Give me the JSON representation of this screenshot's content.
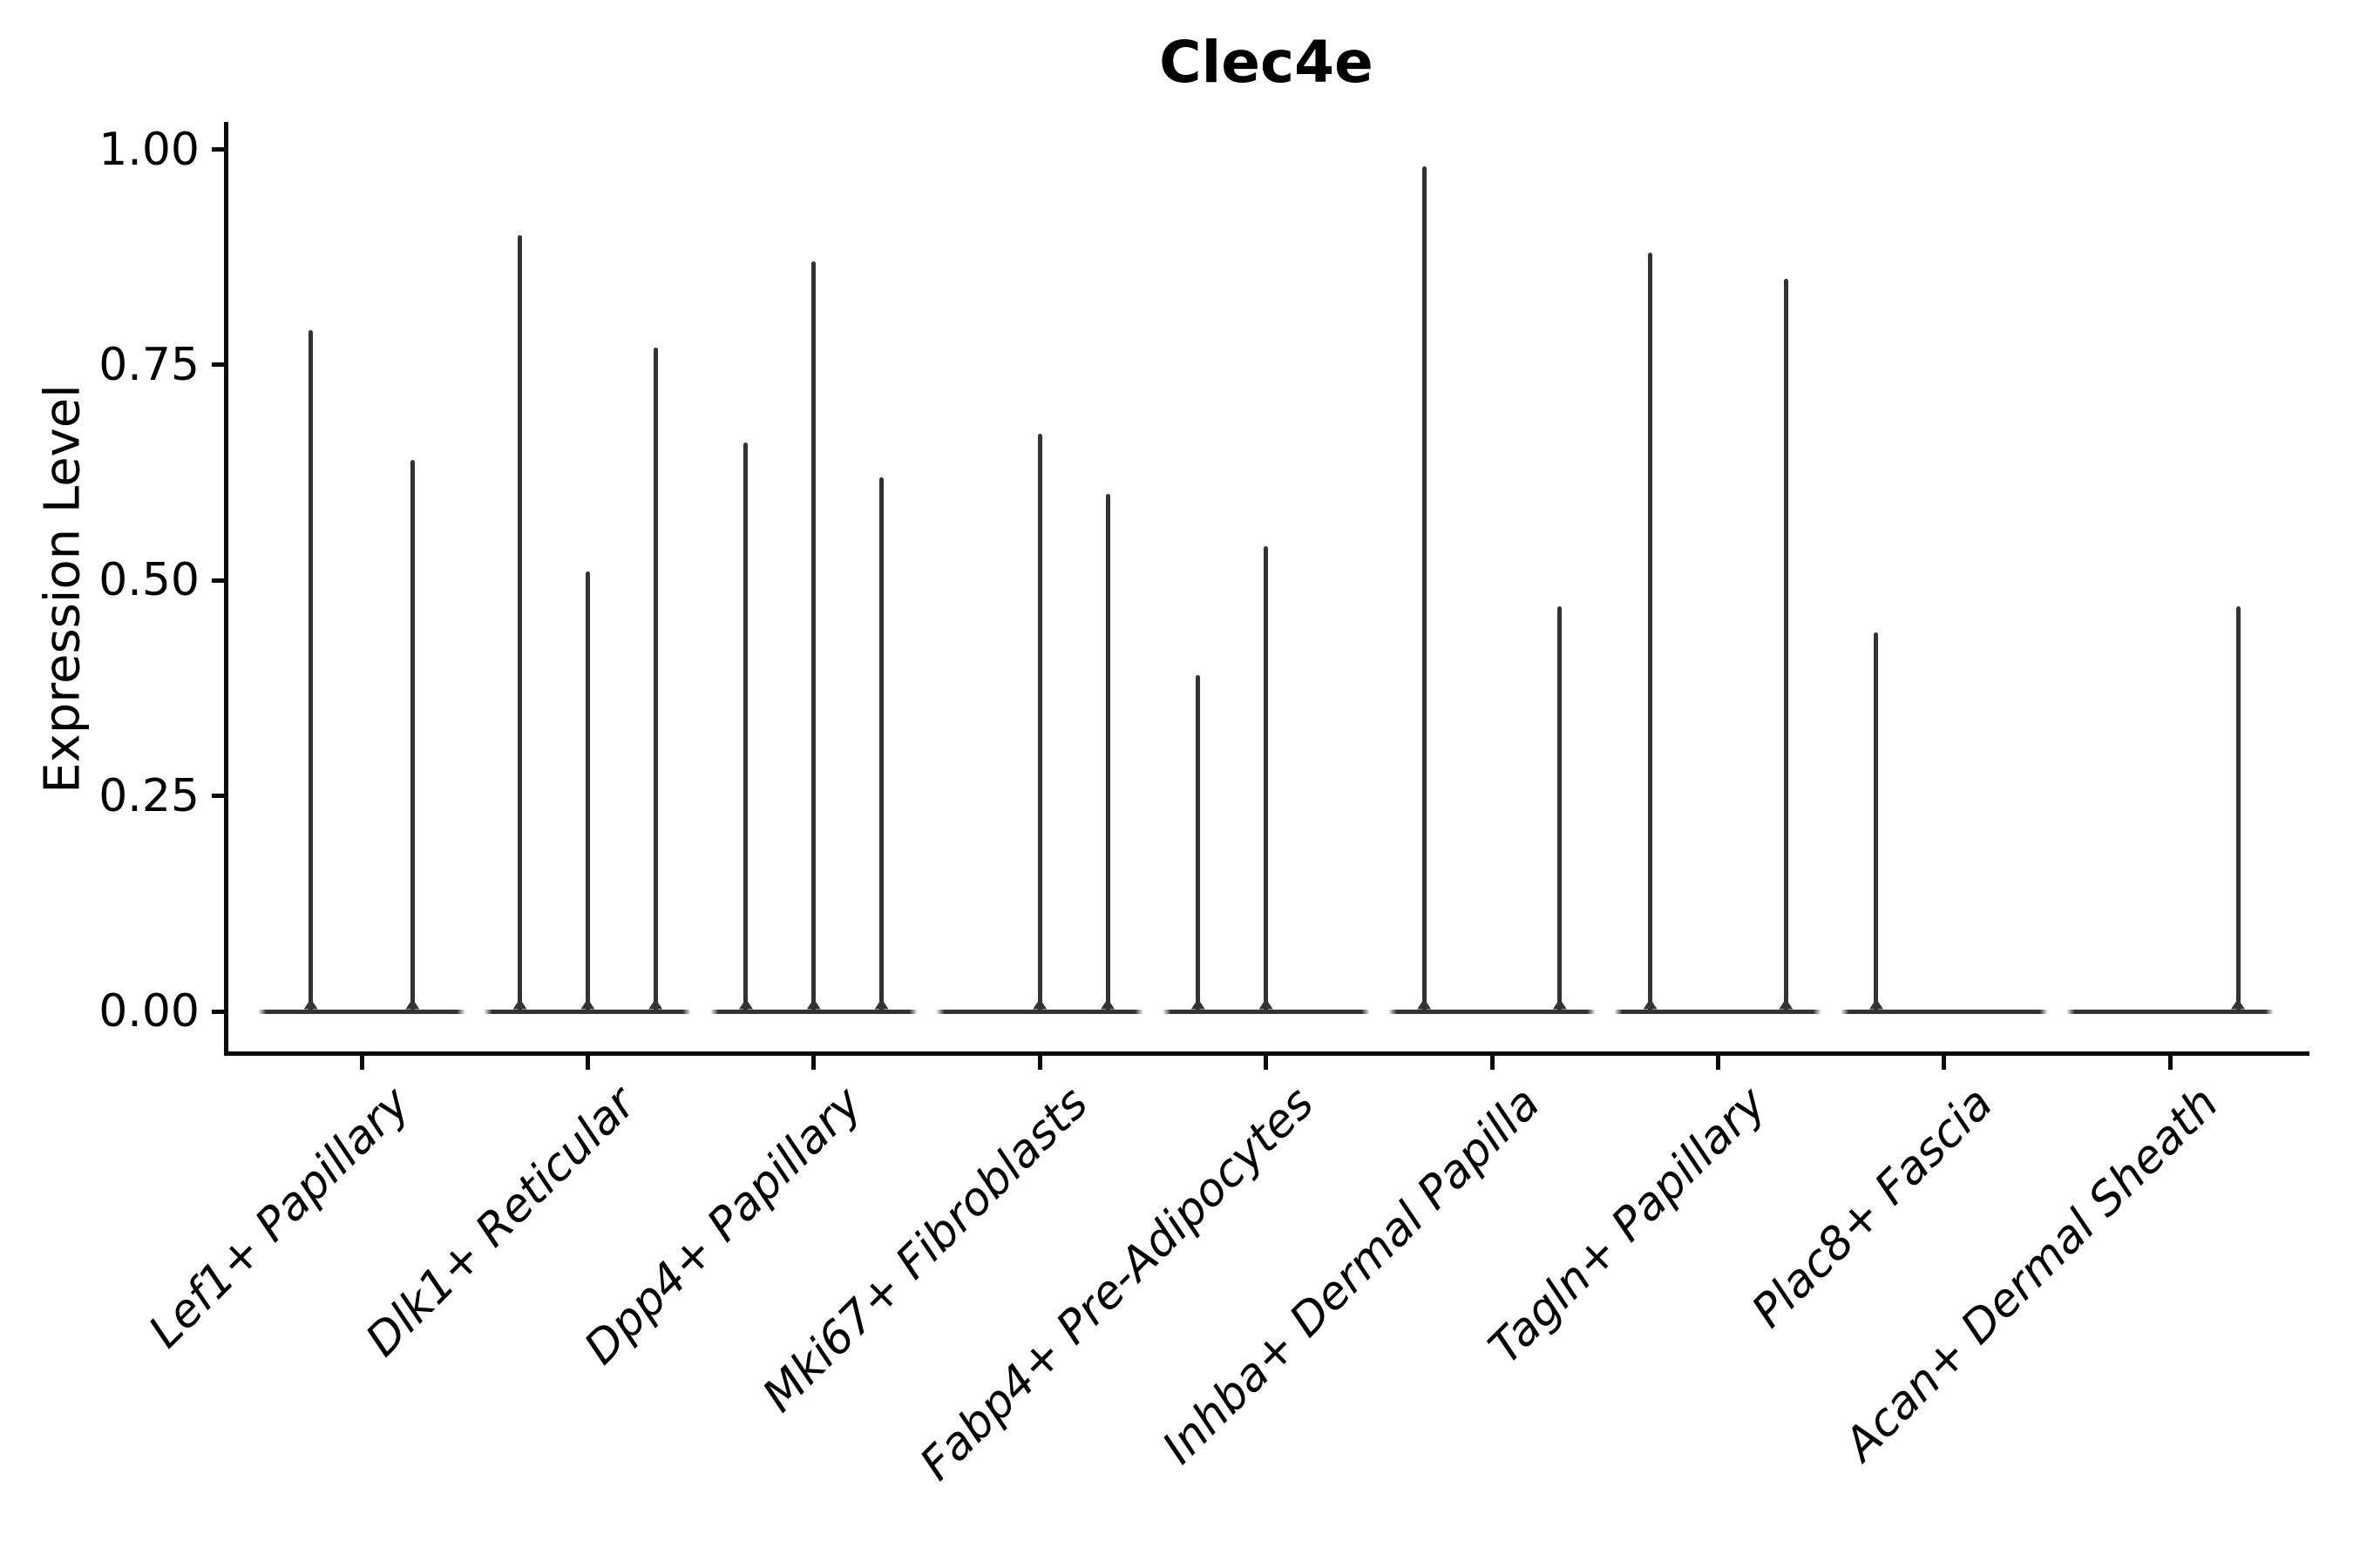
{
  "title": "Clec4e",
  "y_axis": {
    "label": "Expression Level",
    "tick_labels": [
      "0.00",
      "0.25",
      "0.50",
      "0.75",
      "1.00"
    ],
    "tick_values": [
      0.0,
      0.25,
      0.5,
      0.75,
      1.0
    ]
  },
  "colors": {
    "violin": "#333333",
    "axis": "#0a0a0a",
    "text": "#000000",
    "background": "#ffffff"
  },
  "chart_data": {
    "type": "violin",
    "title": "Clec4e",
    "xlabel": "",
    "ylabel": "Expression Level",
    "ylim": [
      0,
      1.03
    ],
    "yticks": [
      0.0,
      0.25,
      0.5,
      0.75,
      1.0
    ],
    "grid": false,
    "legend": "none",
    "description": "Needle-like violin plot of Clec4e expression; each category shows a flat density body at 0 with thin spikes (dodged sub-violins) reaching the peak nonzero expression values.",
    "categories": [
      "Lef1+ Papillary",
      "Dlk1+ Reticular",
      "Dpp4+ Papillary",
      "Mki67+ Fibroblasts",
      "Fabp4+ Pre-Adipocytes",
      "Inhba+ Dermal Papilla",
      "Tagln+ Papillary",
      "Plac8+ Fascia",
      "Acan+ Dermal Sheath"
    ],
    "violins": [
      {
        "category": "Lef1+ Papillary",
        "n_groups": 2,
        "spikes": [
          {
            "group": 1,
            "peak": 0.79
          },
          {
            "group": 2,
            "peak": 0.64
          }
        ]
      },
      {
        "category": "Dlk1+ Reticular",
        "n_groups": 3,
        "spikes": [
          {
            "group": 1,
            "peak": 0.9
          },
          {
            "group": 2,
            "peak": 0.51
          },
          {
            "group": 3,
            "peak": 0.77
          }
        ]
      },
      {
        "category": "Dpp4+ Papillary",
        "n_groups": 3,
        "spikes": [
          {
            "group": 1,
            "peak": 0.66
          },
          {
            "group": 2,
            "peak": 0.87
          },
          {
            "group": 3,
            "peak": 0.62
          }
        ]
      },
      {
        "category": "Mki67+ Fibroblasts",
        "n_groups": 3,
        "spikes": [
          {
            "group": 2,
            "peak": 0.67
          },
          {
            "group": 3,
            "peak": 0.6
          }
        ]
      },
      {
        "category": "Fabp4+ Pre-Adipocytes",
        "n_groups": 3,
        "spikes": [
          {
            "group": 1,
            "peak": 0.39
          },
          {
            "group": 2,
            "peak": 0.54
          }
        ]
      },
      {
        "category": "Inhba+ Dermal Papilla",
        "n_groups": 3,
        "spikes": [
          {
            "group": 1,
            "peak": 0.98
          },
          {
            "group": 3,
            "peak": 0.47
          }
        ]
      },
      {
        "category": "Tagln+ Papillary",
        "n_groups": 3,
        "spikes": [
          {
            "group": 1,
            "peak": 0.88
          },
          {
            "group": 3,
            "peak": 0.85
          }
        ]
      },
      {
        "category": "Plac8+ Fascia",
        "n_groups": 3,
        "spikes": [
          {
            "group": 1,
            "peak": 0.44
          }
        ]
      },
      {
        "category": "Acan+ Dermal Sheath",
        "n_groups": 3,
        "spikes": [
          {
            "group": 3,
            "peak": 0.47
          }
        ]
      }
    ]
  }
}
